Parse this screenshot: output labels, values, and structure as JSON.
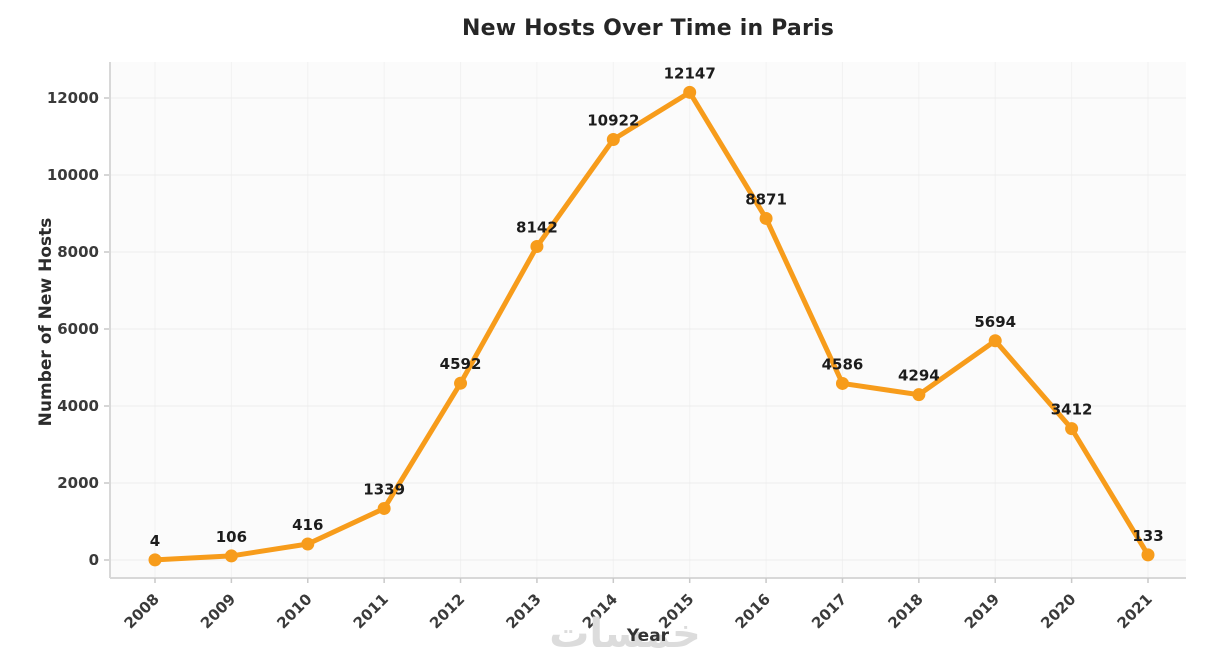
{
  "title": "New Hosts Over Time in Paris",
  "watermark_text": "خمسات",
  "colors": {
    "line": "#F79C1B",
    "marker": "#F79C1B",
    "grid_h": "#ececec",
    "grid_v": "#f2f2f2",
    "axis": "#d8d8d8",
    "tick_mark": "#c9c9c9",
    "tick_text": "#3a3a3a",
    "point_label": "#1c1c1c",
    "plot_bg": "#fbfbfb",
    "title_text": "#262626",
    "watermark": "#dcdcdc"
  },
  "chart_data": {
    "type": "line",
    "title": "New Hosts Over Time in Paris",
    "xlabel": "Year",
    "ylabel": "Number of New Hosts",
    "x": [
      2008,
      2009,
      2010,
      2011,
      2012,
      2013,
      2014,
      2015,
      2016,
      2017,
      2018,
      2019,
      2020,
      2021
    ],
    "values": [
      4,
      106,
      416,
      1339,
      4592,
      8142,
      10922,
      12147,
      8871,
      4586,
      4294,
      5694,
      3412,
      133
    ],
    "point_labels": [
      "4",
      "106",
      "416",
      "1339",
      "4592",
      "8142",
      "10922",
      "12147",
      "8871",
      "4586",
      "4294",
      "5694",
      "3412",
      "133"
    ],
    "yticks": [
      0,
      2000,
      4000,
      6000,
      8000,
      10000,
      12000
    ],
    "ylim": [
      0,
      12900
    ],
    "grid": true,
    "legend": "none",
    "marker": "circle",
    "x_tick_rotation": -45
  }
}
